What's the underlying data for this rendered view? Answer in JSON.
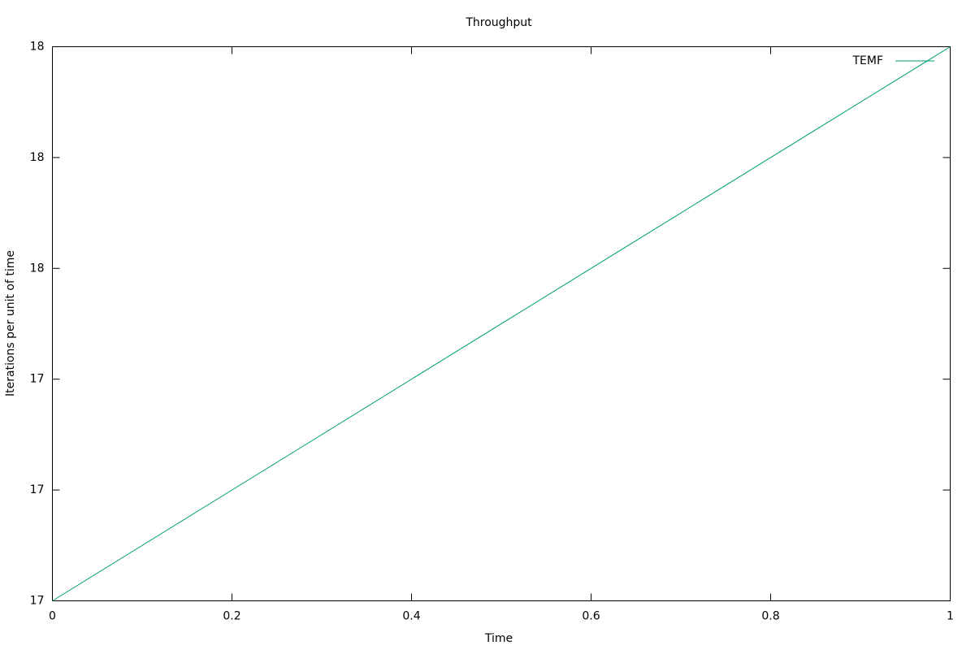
{
  "chart_data": {
    "type": "line",
    "title": "Throughput",
    "xlabel": "Time",
    "ylabel": "Iterations per unit of time",
    "x": [
      0,
      1
    ],
    "series": [
      {
        "name": "TEMF",
        "color": "#009e73",
        "values": [
          17,
          18
        ]
      }
    ],
    "xlim": [
      0,
      1
    ],
    "xticks": [
      0,
      0.2,
      0.4,
      0.6,
      0.8,
      1
    ],
    "ylim": [
      17,
      18
    ],
    "yticks": [
      17,
      {
        "value": 17.2,
        "label": "17"
      },
      {
        "value": 17.4,
        "label": "17"
      },
      {
        "value": 17.6,
        "label": "18"
      },
      {
        "value": 17.8,
        "label": "18"
      },
      18
    ],
    "grid": false,
    "legend": "top-right"
  }
}
